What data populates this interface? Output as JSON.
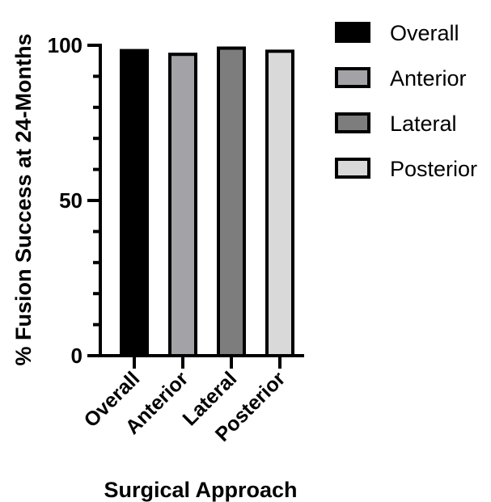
{
  "chart_data": {
    "type": "bar",
    "categories": [
      "Overall",
      "Anterior",
      "Lateral",
      "Posterior"
    ],
    "values": [
      98.8,
      97.6,
      99.6,
      98.6
    ],
    "colors": [
      "#000000",
      "#a3a3a7",
      "#7d7d7d",
      "#d9d9d9"
    ],
    "edge_color": "#000000",
    "xlabel": "Surgical Approach",
    "ylabel": "% Fusion Success at 24-Months",
    "ylim": [
      0,
      100
    ],
    "yticks": [
      "0",
      "50",
      "100"
    ],
    "minor_tick_step": 10,
    "grid": false,
    "legend": {
      "placement": "top-right",
      "entries": [
        "Overall",
        "Anterior",
        "Lateral",
        "Posterior"
      ]
    }
  }
}
